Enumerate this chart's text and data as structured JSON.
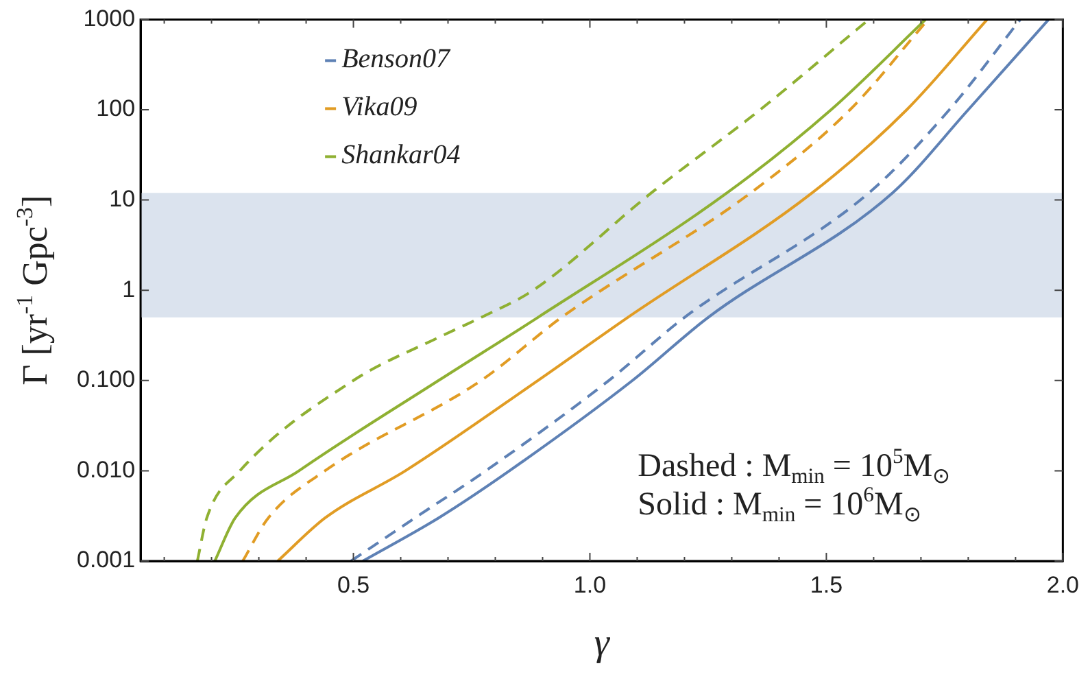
{
  "chart_data": {
    "type": "line",
    "xlabel": "γ",
    "ylabel": "Γ [yr$^{-1}$ Gpc$^{-3}$]",
    "log": "y",
    "grid": false,
    "legend": "top left",
    "xlim": [
      0.05,
      2.0
    ],
    "xticks": [
      {
        "value": 0.1,
        "label": null
      },
      {
        "value": 0.2,
        "label": null
      },
      {
        "value": 0.3,
        "label": null
      },
      {
        "value": 0.4,
        "label": null
      },
      0.5,
      {
        "value": 0.6,
        "label": null
      },
      {
        "value": 0.7,
        "label": null
      },
      {
        "value": 0.8,
        "label": null
      },
      {
        "value": 0.9,
        "label": null
      },
      {
        "value": 1.0,
        "label": "1.0"
      },
      {
        "value": 1.1,
        "label": null
      },
      {
        "value": 1.2,
        "label": null
      },
      {
        "value": 1.3,
        "label": null
      },
      {
        "value": 1.4,
        "label": null
      },
      1.5,
      {
        "value": 1.6,
        "label": null
      },
      {
        "value": 1.7,
        "label": null
      },
      {
        "value": 1.8,
        "label": null
      },
      {
        "value": 1.9,
        "label": null
      },
      {
        "value": 2.0,
        "label": "2.0"
      }
    ],
    "ylim": [
      0.001,
      1000
    ],
    "yticks": [
      0.001,
      {
        "value": 0.01,
        "label": "0.010"
      },
      {
        "value": 0.1,
        "label": "0.100"
      },
      1,
      10,
      100,
      1000
    ],
    "bands": [
      {
        "axis": "y",
        "from": 0.5,
        "to": 12,
        "color": "#dbe3ee"
      }
    ],
    "annotations": [
      "Dashed : M$_{min}$ = 10$^{5}$M$_{⊙}$",
      "Solid : M$_{min}$ = 10$^{6}$M$_{⊙}$"
    ],
    "series": [
      {
        "name": "Benson07",
        "color": "#5e81b5",
        "line_style": "solid",
        "x": [
          0.52,
          0.68,
          0.83,
          1.09,
          1.25,
          1.64,
          1.8,
          1.97
        ],
        "values": [
          0.001,
          0.003,
          0.01,
          0.1,
          0.5,
          12,
          100,
          1000
        ]
      },
      {
        "name": "Vika09",
        "color": "#e19c24",
        "line_style": "solid",
        "x": [
          0.34,
          0.44,
          0.61,
          0.89,
          1.08,
          1.47,
          1.67,
          1.84
        ],
        "values": [
          0.001,
          0.003,
          0.01,
          0.1,
          0.5,
          12,
          100,
          1000
        ]
      },
      {
        "name": "Shankar04",
        "color": "#8fb032",
        "line_style": "solid",
        "x": [
          0.207,
          0.25,
          0.385,
          0.68,
          0.89,
          1.29,
          1.51,
          1.71
        ],
        "values": [
          0.001,
          0.003,
          0.01,
          0.1,
          0.5,
          12,
          100,
          1000
        ]
      },
      {
        "color": "#5e81b5",
        "line_style": "dashed",
        "x": [
          0.495,
          0.63,
          0.78,
          1.04,
          1.2,
          1.59,
          1.76,
          1.91
        ],
        "values": [
          0.001,
          0.003,
          0.01,
          0.1,
          0.5,
          12,
          100,
          1000
        ]
      },
      {
        "color": "#e19c24",
        "line_style": "dashed",
        "x": [
          0.266,
          0.32,
          0.44,
          0.77,
          0.94,
          1.34,
          1.55,
          1.715
        ],
        "values": [
          0.001,
          0.003,
          0.01,
          0.1,
          0.5,
          12,
          100,
          1000
        ]
      },
      {
        "color": "#8fb032",
        "line_style": "dashed",
        "x": [
          0.17,
          0.19,
          0.26,
          0.5,
          0.68,
          0.77,
          0.88,
          1.13,
          1.36,
          1.59
        ],
        "values": [
          0.001,
          0.003,
          0.01,
          0.1,
          0.3,
          0.5,
          1,
          12,
          100,
          1000
        ]
      }
    ]
  }
}
